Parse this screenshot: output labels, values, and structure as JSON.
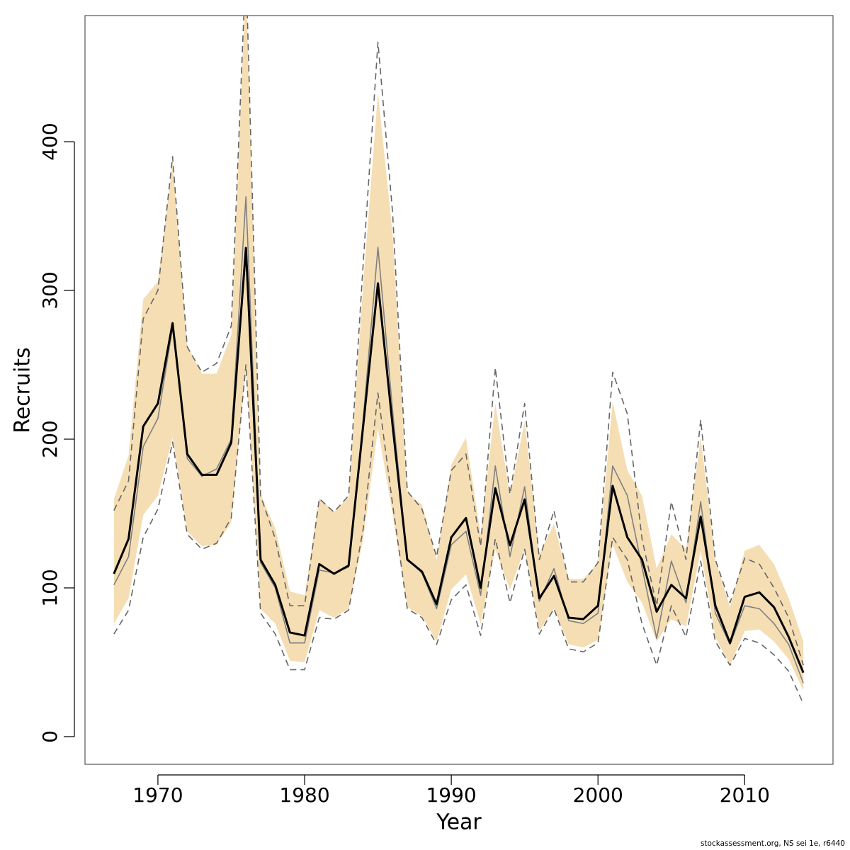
{
  "chart_data": {
    "type": "line",
    "x_label": "Year",
    "y_label": "Recruits",
    "footnote": "stockassessment.org, NS sei 1e, r6440",
    "x": [
      1967,
      1968,
      1969,
      1970,
      1971,
      1972,
      1973,
      1974,
      1975,
      1976,
      1977,
      1978,
      1979,
      1980,
      1981,
      1982,
      1983,
      1984,
      1985,
      1986,
      1987,
      1988,
      1989,
      1990,
      1991,
      1992,
      1993,
      1994,
      1995,
      1996,
      1997,
      1998,
      1999,
      2000,
      2001,
      2002,
      2003,
      2004,
      2005,
      2006,
      2007,
      2008,
      2009,
      2010,
      2011,
      2012,
      2013,
      2014
    ],
    "band": {
      "color": "#f5deb3",
      "upper": [
        159.5,
        189,
        294,
        306,
        386,
        263,
        244,
        244,
        270,
        510,
        163,
        140,
        97.6,
        95,
        160.5,
        151,
        161,
        305,
        433,
        338,
        164,
        156,
        119,
        183,
        201,
        136,
        224,
        162,
        212,
        123,
        143,
        106,
        106,
        117,
        225,
        179,
        162,
        113,
        136,
        126,
        201,
        119,
        87,
        125,
        129,
        116,
        93,
        64
      ],
      "lower": [
        76,
        93,
        149,
        162,
        201,
        138,
        128,
        129,
        144,
        248,
        86,
        76,
        51,
        50,
        85,
        80,
        86,
        133,
        207,
        150,
        87,
        81,
        64,
        99,
        109,
        76,
        126,
        99,
        126,
        71,
        86,
        62,
        60,
        65,
        129,
        104,
        90,
        64,
        79,
        74,
        125,
        67,
        48,
        71,
        72,
        64,
        52,
        31
      ]
    },
    "series": [
      {
        "color": "#666666",
        "dashed": true,
        "width": 1.6,
        "values": [
          152,
          172,
          281,
          300,
          390,
          262,
          245,
          251,
          276,
          520,
          162,
          133,
          88,
          88,
          160,
          151,
          162,
          319,
          467,
          352,
          165,
          153,
          121,
          179,
          190,
          128,
          248,
          163,
          224,
          119,
          152,
          104,
          104,
          117,
          245,
          217,
          133,
          88,
          158,
          119,
          213,
          119,
          90,
          120,
          116,
          100,
          80,
          48
        ]
      },
      {
        "color": "#666666",
        "dashed": true,
        "width": 1.6,
        "values": [
          69,
          85,
          134,
          153,
          198,
          136,
          126,
          130,
          147,
          250,
          83,
          69,
          45,
          45,
          80,
          79,
          85,
          140,
          231,
          156,
          86,
          80,
          62,
          92,
          102,
          68,
          133,
          90,
          126,
          69,
          86,
          59,
          57,
          63,
          134,
          119,
          76,
          48,
          88,
          67,
          118,
          64,
          48,
          66,
          63,
          55,
          44,
          22
        ]
      },
      {
        "color": "#808080",
        "dashed": false,
        "width": 1.6,
        "values": [
          102,
          121,
          195,
          214,
          275,
          187,
          175,
          180,
          200,
          363,
          117,
          100,
          63,
          63,
          112,
          110,
          114,
          214,
          329,
          219,
          119,
          110,
          86,
          129,
          138,
          95,
          182,
          121,
          168,
          91,
          113,
          78,
          76,
          83,
          182,
          162,
          114,
          66,
          118,
          90,
          158,
          83,
          62,
          88,
          86,
          76,
          62,
          36
        ]
      },
      {
        "color": "#000000",
        "dashed": false,
        "width": 3,
        "values": [
          109.5,
          133,
          208.6,
          224,
          278,
          190,
          176,
          176,
          197.6,
          328.6,
          119,
          102,
          70,
          68,
          116,
          109.5,
          115,
          209.5,
          304.8,
          209,
          119,
          111,
          89,
          134,
          147,
          100,
          167,
          128.6,
          159.5,
          93,
          108,
          80,
          79,
          88,
          168.6,
          134,
          119,
          84,
          102,
          93,
          148,
          88,
          63,
          94,
          97,
          87,
          67,
          43
        ]
      }
    ],
    "xlim": [
      1965.03,
      2016.02
    ],
    "ylim": [
      -18.6,
      484.8
    ],
    "xticks": [
      1970,
      1980,
      1990,
      2000,
      2010
    ],
    "yticks": [
      0,
      100,
      200,
      300,
      400
    ]
  }
}
